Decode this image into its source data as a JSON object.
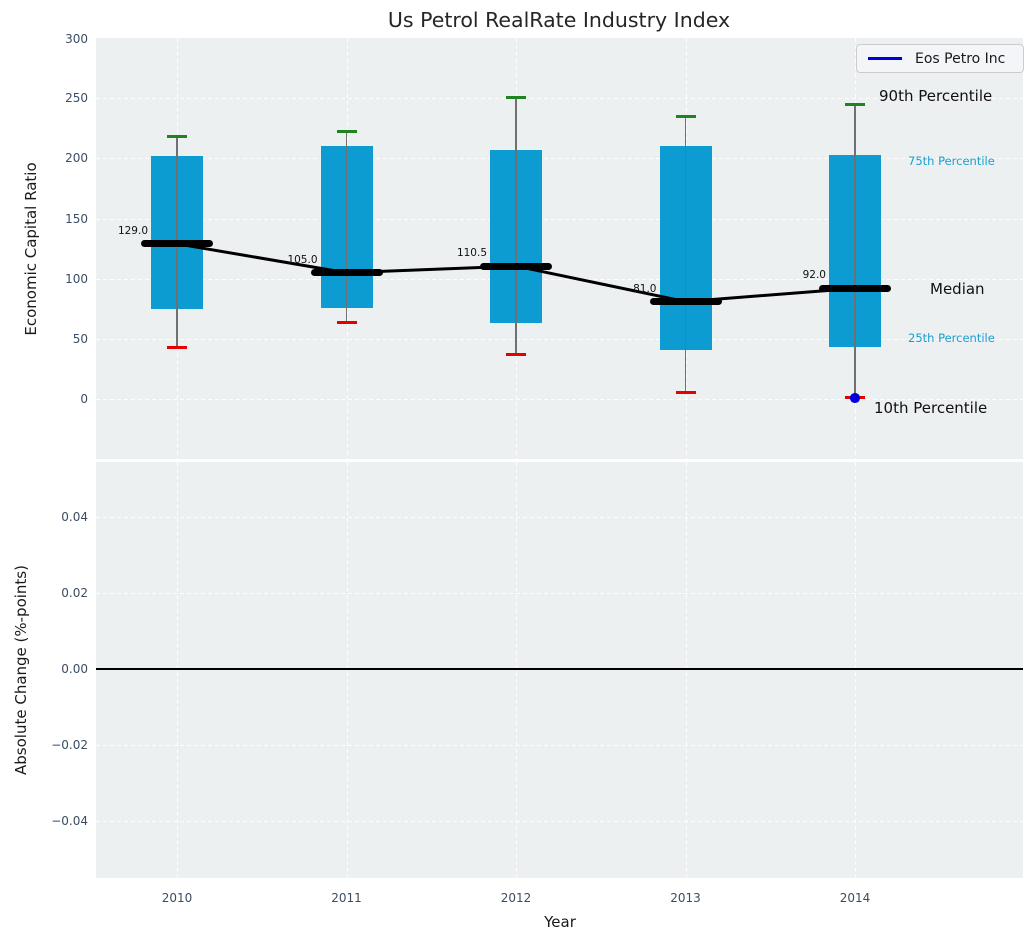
{
  "title": "Us Petrol RealRate Industry Index",
  "legend": {
    "label": "Eos Petro Inc"
  },
  "annotations": {
    "p90": "90th Percentile",
    "p75": "75th Percentile",
    "median": "Median",
    "p25": "25th Percentile",
    "p10": "10th Percentile"
  },
  "colors": {
    "box_fill": "#0c9cd2",
    "cap_top": "#1d8420",
    "cap_bottom": "#e60000",
    "median_line": "#000000",
    "trend_line": "#000000",
    "company_point": "#0000dd",
    "legend_line": "#0000dd",
    "axes_bg": "#edf0f1",
    "grid": "#ffffff",
    "tick_text": "#3b4d63",
    "cyan_label": "#1a9ed1"
  },
  "chart_data": [
    {
      "type": "boxplot",
      "title": "Us Petrol RealRate Industry Index",
      "xlabel": "Year",
      "ylabel": "Economic Capital Ratio",
      "categories": [
        "2010",
        "2011",
        "2012",
        "2013",
        "2014"
      ],
      "ylim": [
        -50,
        300
      ],
      "yticks": [
        {
          "value": 0,
          "label": "0"
        },
        {
          "value": 50,
          "label": "50"
        },
        {
          "value": 100,
          "label": "100"
        },
        {
          "value": 150,
          "label": "150"
        },
        {
          "value": 200,
          "label": "200"
        },
        {
          "value": 250,
          "label": "250"
        },
        {
          "value": 300,
          "label": "300"
        }
      ],
      "grid": "white dashed",
      "legend_position": "upper right",
      "series": [
        {
          "name": "90th Percentile",
          "values": [
            218,
            222,
            251,
            235,
            245
          ]
        },
        {
          "name": "75th Percentile",
          "values": [
            202,
            210,
            207,
            210,
            203
          ]
        },
        {
          "name": "Median",
          "values": [
            129.0,
            105.0,
            110.5,
            81.0,
            92.0
          ]
        },
        {
          "name": "25th Percentile",
          "values": [
            75,
            76,
            63,
            41,
            43
          ]
        },
        {
          "name": "10th Percentile",
          "values": [
            43,
            64,
            37,
            5,
            1
          ]
        }
      ],
      "median_labels": [
        "129.0",
        "105.0",
        "110.5",
        "81.0",
        "92.0"
      ],
      "company_series": {
        "name": "Eos Petro Inc",
        "points": [
          {
            "x": "2014",
            "y": 1
          }
        ]
      }
    },
    {
      "type": "line",
      "xlabel": "Year",
      "ylabel": "Absolute Change (%-points)",
      "categories": [
        "2010",
        "2011",
        "2012",
        "2013",
        "2014"
      ],
      "ylim": [
        -0.055,
        0.0545
      ],
      "yticks": [
        {
          "value": 0.04,
          "label": "0.04"
        },
        {
          "value": 0.02,
          "label": "0.02"
        },
        {
          "value": 0,
          "label": "0.00"
        },
        {
          "value": -0.02,
          "label": "−0.02"
        },
        {
          "value": -0.04,
          "label": "−0.04"
        }
      ],
      "axhline": 0.0,
      "series": []
    }
  ]
}
